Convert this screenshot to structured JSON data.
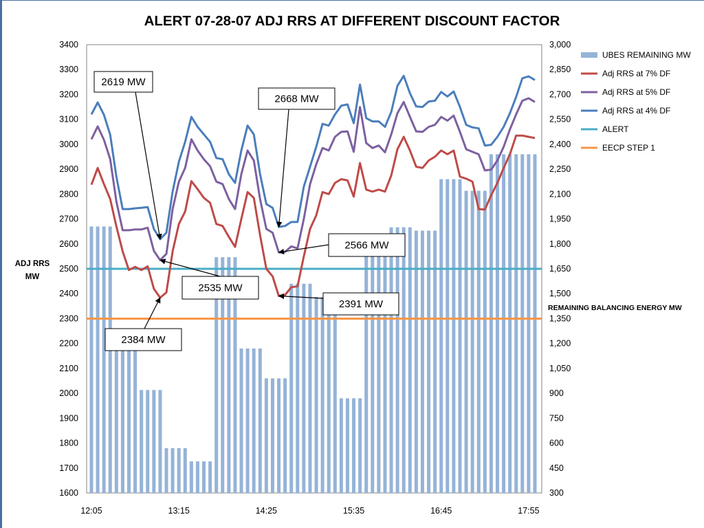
{
  "chart_data": {
    "type": "line",
    "title": "ALERT  07-28-07  ADJ RRS AT DIFFERENT DISCOUNT FACTOR",
    "ylabel_lines": [
      "ADJ RRS",
      "MW"
    ],
    "y2label": "REMAINING BALANCING ENERGY MW",
    "ylim": [
      1600,
      3400
    ],
    "y2lim": [
      300,
      3000
    ],
    "y_ticks": [
      "1600",
      "1700",
      "1800",
      "1900",
      "2000",
      "2100",
      "2200",
      "2300",
      "2400",
      "2500",
      "2600",
      "2700",
      "2800",
      "2900",
      "3000",
      "3100",
      "3200",
      "3300",
      "3400"
    ],
    "y2_ticks": [
      "300",
      "450",
      "600",
      "750",
      "900",
      "1,050",
      "1,200",
      "1,350",
      "1,500",
      "1,650",
      "1,800",
      "1,950",
      "2,100",
      "2,250",
      "2,400",
      "2,550",
      "2,700",
      "2,850",
      "3,000"
    ],
    "x_tick_labels": [
      "12:05",
      "13:15",
      "14:25",
      "15:35",
      "16:45",
      "17:55"
    ],
    "num_points": 72,
    "bars": {
      "name": "UBES REMAINING  MW",
      "color": "#95b3d7",
      "values": [
        1905,
        1905,
        1905,
        1905,
        1260,
        1260,
        1260,
        1260,
        920,
        920,
        920,
        920,
        570,
        570,
        570,
        570,
        490,
        490,
        490,
        490,
        1720,
        1720,
        1720,
        1720,
        1170,
        1170,
        1170,
        1170,
        990,
        990,
        990,
        990,
        1560,
        1560,
        1560,
        1560,
        1480,
        1480,
        1480,
        1480,
        870,
        870,
        870,
        870,
        1760,
        1760,
        1760,
        1760,
        1900,
        1900,
        1900,
        1900,
        1880,
        1880,
        1880,
        1880,
        2190,
        2190,
        2190,
        2190,
        2120,
        2120,
        2120,
        2120,
        2340,
        2340,
        2340,
        2340,
        2340,
        2340,
        2340,
        2340
      ]
    },
    "series": [
      {
        "name": "Adj RRS at 7% DF",
        "color": "#be4b48",
        "values": [
          2838,
          2905,
          2840,
          2780,
          2670,
          2570,
          2495,
          2508,
          2495,
          2510,
          2420,
          2384,
          2405,
          2570,
          2680,
          2730,
          2852,
          2820,
          2785,
          2765,
          2680,
          2672,
          2628,
          2588,
          2700,
          2808,
          2785,
          2635,
          2500,
          2470,
          2391,
          2395,
          2426,
          2430,
          2550,
          2660,
          2715,
          2808,
          2800,
          2845,
          2860,
          2855,
          2790,
          2925,
          2818,
          2810,
          2818,
          2810,
          2875,
          2980,
          3030,
          2975,
          2910,
          2905,
          2935,
          2950,
          2975,
          2960,
          2975,
          2870,
          2862,
          2850,
          2740,
          2738,
          2795,
          2845,
          2905,
          2960,
          3035,
          3035,
          3030,
          3025
        ]
      },
      {
        "name": "Adj RRS at 5% DF",
        "color": "#7d60a0",
        "values": [
          3020,
          3072,
          3018,
          2940,
          2770,
          2655,
          2655,
          2658,
          2658,
          2665,
          2572,
          2535,
          2560,
          2740,
          2850,
          2905,
          3020,
          2975,
          2940,
          2912,
          2850,
          2840,
          2780,
          2740,
          2880,
          2975,
          2935,
          2780,
          2660,
          2645,
          2566,
          2568,
          2590,
          2582,
          2700,
          2840,
          2920,
          2985,
          2975,
          3030,
          3050,
          3052,
          2970,
          3150,
          3005,
          2985,
          2995,
          2968,
          3040,
          3125,
          3170,
          3110,
          3052,
          3050,
          3070,
          3078,
          3110,
          3095,
          3115,
          3050,
          2980,
          2970,
          2960,
          2895,
          2898,
          2935,
          2990,
          3060,
          3120,
          3175,
          3185,
          3170
        ]
      },
      {
        "name": "Adj RRS at 4% DF",
        "color": "#4a7ebb",
        "values": [
          3120,
          3168,
          3118,
          3038,
          2870,
          2740,
          2740,
          2743,
          2745,
          2748,
          2660,
          2619,
          2645,
          2810,
          2930,
          3010,
          3110,
          3070,
          3040,
          3010,
          2945,
          2940,
          2880,
          2845,
          2975,
          3075,
          3040,
          2880,
          2760,
          2745,
          2668,
          2672,
          2688,
          2688,
          2830,
          2910,
          2990,
          3082,
          3075,
          3120,
          3155,
          3160,
          3085,
          3240,
          3105,
          3092,
          3092,
          3070,
          3130,
          3235,
          3275,
          3205,
          3152,
          3150,
          3172,
          3175,
          3210,
          3192,
          3212,
          3150,
          3078,
          3068,
          3064,
          2995,
          2998,
          3030,
          3070,
          3125,
          3190,
          3265,
          3273,
          3258
        ]
      }
    ],
    "hlines": [
      {
        "name": "ALERT",
        "color": "#4bacc6",
        "value": 2500
      },
      {
        "name": "EECP STEP 1",
        "color": "#f79646",
        "value": 2300
      }
    ],
    "legend": [
      "UBES REMAINING  MW",
      "Adj RRS at 7% DF",
      "Adj RRS at 5% DF",
      "Adj RRS at 4% DF",
      "ALERT",
      "EECP STEP 1"
    ],
    "annotations": [
      {
        "text": "2619 MW",
        "point_series": 2,
        "point_index": 11
      },
      {
        "text": "2668 MW",
        "point_series": 2,
        "point_index": 30
      },
      {
        "text": "2566 MW",
        "point_series": 1,
        "point_index": 30
      },
      {
        "text": "2535 MW",
        "point_series": 1,
        "point_index": 11
      },
      {
        "text": "2391 MW",
        "point_series": 0,
        "point_index": 30
      },
      {
        "text": "2384 MW",
        "point_series": 0,
        "point_index": 11
      }
    ]
  }
}
